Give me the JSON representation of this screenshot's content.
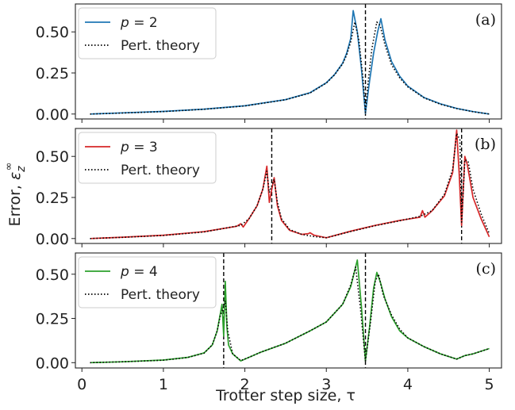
{
  "xlabel": "Trotter step size, τ",
  "ylabel_prefix": "Error, ",
  "ylabel_symbol": "ε",
  "ylabel_sub": "z",
  "ylabel_sup": "∞",
  "x_ticks": [
    "0",
    "1",
    "2",
    "3",
    "4",
    "5"
  ],
  "y_ticks": [
    "0.00",
    "0.25",
    "0.50"
  ],
  "chart_data": [
    {
      "type": "line",
      "panel_label": "(a)",
      "xlim": [
        -0.08,
        5.15
      ],
      "ylim": [
        -0.03,
        0.67
      ],
      "yticks": [
        0.0,
        0.25,
        0.5
      ],
      "xticks": [
        0,
        1,
        2,
        3,
        4,
        5
      ],
      "grid": false,
      "legend_position": "top-left",
      "vlines": [
        3.48
      ],
      "series": [
        {
          "name": "p = 2",
          "style": "solid",
          "color": "#1f77b4",
          "x": [
            0.1,
            0.5,
            1.0,
            1.5,
            2.0,
            2.5,
            2.8,
            3.0,
            3.1,
            3.2,
            3.25,
            3.3,
            3.33,
            3.38,
            3.43,
            3.48,
            3.53,
            3.58,
            3.63,
            3.67,
            3.72,
            3.8,
            3.9,
            4.0,
            4.2,
            4.4,
            4.6,
            4.8,
            5.0
          ],
          "y": [
            0.0,
            0.007,
            0.016,
            0.03,
            0.05,
            0.088,
            0.13,
            0.19,
            0.24,
            0.31,
            0.37,
            0.46,
            0.63,
            0.5,
            0.28,
            0.005,
            0.2,
            0.37,
            0.5,
            0.58,
            0.45,
            0.32,
            0.23,
            0.17,
            0.1,
            0.062,
            0.034,
            0.015,
            0.0
          ]
        },
        {
          "name": "Pert. theory",
          "style": "dotted",
          "color": "#000000",
          "x": [
            0.1,
            0.5,
            1.0,
            1.5,
            2.0,
            2.5,
            2.8,
            3.0,
            3.1,
            3.2,
            3.25,
            3.3,
            3.35,
            3.4,
            3.45,
            3.48,
            3.51,
            3.56,
            3.62,
            3.66,
            3.72,
            3.8,
            3.9,
            4.0,
            4.2,
            4.4,
            4.6,
            4.8,
            5.0
          ],
          "y": [
            0.0,
            0.006,
            0.015,
            0.029,
            0.049,
            0.087,
            0.128,
            0.188,
            0.238,
            0.305,
            0.36,
            0.44,
            0.56,
            0.45,
            0.22,
            0.01,
            0.18,
            0.4,
            0.56,
            0.54,
            0.42,
            0.3,
            0.22,
            0.165,
            0.098,
            0.06,
            0.033,
            0.014,
            0.0
          ]
        }
      ]
    },
    {
      "type": "line",
      "panel_label": "(b)",
      "xlim": [
        -0.08,
        5.15
      ],
      "ylim": [
        -0.03,
        0.67
      ],
      "yticks": [
        0.0,
        0.25,
        0.5
      ],
      "xticks": [
        0,
        1,
        2,
        3,
        4,
        5
      ],
      "grid": false,
      "legend_position": "top-left",
      "vlines": [
        2.33,
        4.66
      ],
      "series": [
        {
          "name": "p = 3",
          "style": "solid",
          "color": "#d62728",
          "x": [
            0.1,
            0.5,
            1.0,
            1.5,
            1.9,
            1.95,
            1.98,
            2.05,
            2.15,
            2.22,
            2.27,
            2.3,
            2.33,
            2.36,
            2.4,
            2.45,
            2.55,
            2.7,
            2.78,
            2.8,
            2.85,
            3.0,
            3.3,
            3.6,
            3.9,
            4.15,
            4.18,
            4.21,
            4.3,
            4.45,
            4.55,
            4.6,
            4.63,
            4.66,
            4.7,
            4.73,
            4.8,
            4.9,
            5.0
          ],
          "y": [
            0.0,
            0.008,
            0.02,
            0.042,
            0.075,
            0.09,
            0.07,
            0.12,
            0.2,
            0.3,
            0.44,
            0.22,
            0.3,
            0.37,
            0.2,
            0.11,
            0.05,
            0.025,
            0.03,
            0.035,
            0.02,
            0.005,
            0.045,
            0.08,
            0.11,
            0.13,
            0.17,
            0.13,
            0.17,
            0.26,
            0.4,
            0.66,
            0.4,
            0.08,
            0.5,
            0.45,
            0.25,
            0.12,
            0.01
          ]
        },
        {
          "name": "Pert. theory",
          "style": "dotted",
          "color": "#000000",
          "x": [
            0.1,
            0.5,
            1.0,
            1.5,
            1.95,
            2.05,
            2.15,
            2.22,
            2.27,
            2.3,
            2.33,
            2.36,
            2.4,
            2.45,
            2.55,
            2.7,
            2.85,
            3.0,
            3.3,
            3.6,
            3.9,
            4.15,
            4.3,
            4.45,
            4.55,
            4.6,
            4.64,
            4.66,
            4.7,
            4.74,
            4.8,
            4.9,
            5.0
          ],
          "y": [
            0.0,
            0.007,
            0.019,
            0.04,
            0.08,
            0.12,
            0.2,
            0.3,
            0.41,
            0.28,
            0.32,
            0.36,
            0.22,
            0.12,
            0.055,
            0.025,
            0.012,
            0.005,
            0.043,
            0.078,
            0.108,
            0.135,
            0.17,
            0.27,
            0.42,
            0.64,
            0.6,
            0.1,
            0.48,
            0.47,
            0.3,
            0.15,
            0.03
          ]
        }
      ]
    },
    {
      "type": "line",
      "panel_label": "(c)",
      "xlim": [
        -0.08,
        5.15
      ],
      "ylim": [
        -0.03,
        0.62
      ],
      "yticks": [
        0.0,
        0.25,
        0.5
      ],
      "xticks": [
        0,
        1,
        2,
        3,
        4,
        5
      ],
      "grid": false,
      "legend_position": "top-left",
      "vlines": [
        1.74,
        3.48
      ],
      "series": [
        {
          "name": "p = 4",
          "style": "solid",
          "color": "#2ca02c",
          "x": [
            0.1,
            0.5,
            1.0,
            1.3,
            1.5,
            1.6,
            1.66,
            1.7,
            1.72,
            1.74,
            1.76,
            1.78,
            1.8,
            1.85,
            1.95,
            2.05,
            2.2,
            2.5,
            2.8,
            3.0,
            3.2,
            3.3,
            3.38,
            3.43,
            3.48,
            3.53,
            3.58,
            3.62,
            3.66,
            3.72,
            3.8,
            3.9,
            4.0,
            4.2,
            4.4,
            4.6,
            4.7,
            4.8,
            5.0
          ],
          "y": [
            0.0,
            0.005,
            0.015,
            0.03,
            0.055,
            0.1,
            0.18,
            0.28,
            0.33,
            0.15,
            0.46,
            0.2,
            0.1,
            0.05,
            0.01,
            0.03,
            0.06,
            0.11,
            0.18,
            0.23,
            0.33,
            0.43,
            0.58,
            0.32,
            0.01,
            0.2,
            0.42,
            0.51,
            0.46,
            0.36,
            0.26,
            0.18,
            0.14,
            0.09,
            0.05,
            0.02,
            0.04,
            0.05,
            0.08
          ]
        },
        {
          "name": "Pert. theory",
          "style": "dotted",
          "color": "#000000",
          "x": [
            0.1,
            0.5,
            1.0,
            1.3,
            1.5,
            1.6,
            1.66,
            1.7,
            1.73,
            1.76,
            1.79,
            1.85,
            1.95,
            2.05,
            2.2,
            2.5,
            2.8,
            3.0,
            3.2,
            3.3,
            3.36,
            3.42,
            3.48,
            3.54,
            3.6,
            3.64,
            3.7,
            3.8,
            3.9,
            4.0,
            4.2,
            4.4,
            4.6,
            4.7,
            4.8,
            5.0
          ],
          "y": [
            0.0,
            0.005,
            0.014,
            0.029,
            0.054,
            0.1,
            0.18,
            0.27,
            0.3,
            0.35,
            0.18,
            0.05,
            0.012,
            0.03,
            0.06,
            0.11,
            0.18,
            0.23,
            0.33,
            0.44,
            0.54,
            0.3,
            0.01,
            0.22,
            0.46,
            0.5,
            0.38,
            0.27,
            0.19,
            0.14,
            0.09,
            0.05,
            0.02,
            0.04,
            0.05,
            0.08
          ]
        }
      ]
    }
  ]
}
